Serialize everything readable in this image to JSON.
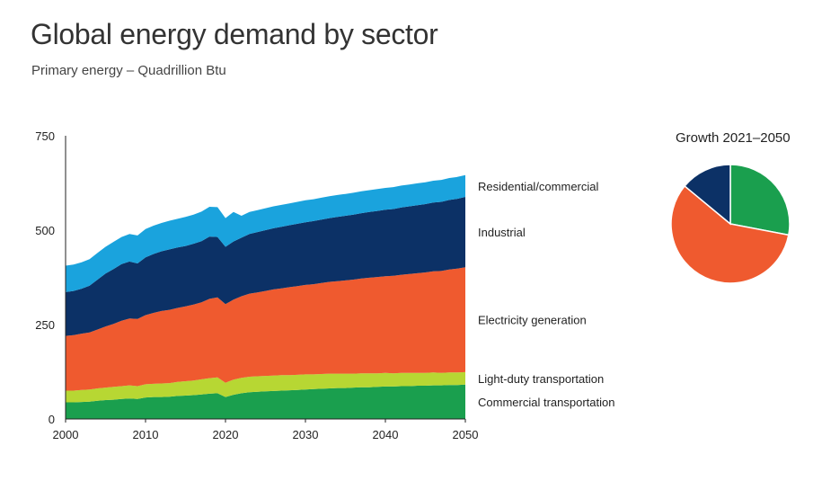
{
  "header": {
    "title": "Global energy demand by sector",
    "subtitle": "Primary energy – Quadrillion Btu"
  },
  "pie": {
    "title": "Growth 2021–2050"
  },
  "chart_data": [
    {
      "type": "area",
      "stacked": true,
      "title": "Global energy demand by sector",
      "subtitle": "Primary energy – Quadrillion Btu",
      "xlabel": "",
      "ylabel": "",
      "xlim": [
        2000,
        2050
      ],
      "ylim": [
        0,
        750
      ],
      "x_ticks": [
        2000,
        2010,
        2020,
        2030,
        2040,
        2050
      ],
      "y_ticks": [
        0,
        250,
        500,
        750
      ],
      "grid": false,
      "legend": "right-side labels",
      "x": [
        2000,
        2001,
        2002,
        2003,
        2004,
        2005,
        2006,
        2007,
        2008,
        2009,
        2010,
        2011,
        2012,
        2013,
        2014,
        2015,
        2016,
        2017,
        2018,
        2019,
        2020,
        2021,
        2022,
        2023,
        2024,
        2025,
        2026,
        2027,
        2028,
        2029,
        2030,
        2031,
        2032,
        2033,
        2034,
        2035,
        2036,
        2037,
        2038,
        2039,
        2040,
        2041,
        2042,
        2043,
        2044,
        2045,
        2046,
        2047,
        2048,
        2049,
        2050
      ],
      "series": [
        {
          "name": "Commercial transportation",
          "color": "#1a9f4e",
          "values": [
            44,
            44,
            45,
            46,
            48,
            50,
            51,
            53,
            54,
            53,
            57,
            58,
            58,
            59,
            61,
            62,
            63,
            65,
            67,
            68,
            58,
            64,
            68,
            71,
            72,
            73,
            74,
            75,
            76,
            77,
            78,
            79,
            80,
            81,
            82,
            82,
            83,
            84,
            84,
            85,
            86,
            86,
            87,
            87,
            88,
            88,
            89,
            89,
            90,
            90,
            91
          ]
        },
        {
          "name": "Light-duty transportation",
          "color": "#b7d733",
          "values": [
            31,
            31,
            32,
            32,
            33,
            33,
            34,
            34,
            35,
            34,
            35,
            35,
            36,
            36,
            37,
            38,
            39,
            40,
            41,
            42,
            38,
            40,
            41,
            41,
            41,
            41,
            41,
            41,
            40,
            40,
            40,
            39,
            39,
            39,
            38,
            38,
            37,
            37,
            37,
            36,
            36,
            35,
            35,
            35,
            34,
            34,
            34,
            33,
            33,
            33,
            33
          ]
        },
        {
          "name": "Electricity generation",
          "color": "#ef5a2f",
          "values": [
            145,
            147,
            149,
            151,
            156,
            162,
            167,
            173,
            177,
            178,
            183,
            188,
            192,
            194,
            196,
            198,
            201,
            204,
            210,
            212,
            208,
            212,
            216,
            220,
            222,
            225,
            228,
            230,
            233,
            235,
            237,
            239,
            241,
            243,
            245,
            247,
            249,
            251,
            253,
            255,
            256,
            258,
            260,
            262,
            264,
            266,
            268,
            270,
            273,
            275,
            278
          ]
        },
        {
          "name": "Industrial",
          "color": "#0c3166",
          "values": [
            116,
            117,
            119,
            124,
            132,
            140,
            145,
            150,
            151,
            147,
            153,
            156,
            158,
            160,
            160,
            160,
            161,
            162,
            165,
            160,
            152,
            154,
            155,
            158,
            160,
            161,
            162,
            163,
            164,
            165,
            166,
            167,
            168,
            169,
            170,
            171,
            172,
            173,
            174,
            175,
            176,
            177,
            178,
            179,
            180,
            181,
            182,
            183,
            184,
            185,
            186
          ]
        },
        {
          "name": "Residential/commercial",
          "color": "#1aa3dd",
          "values": [
            70,
            70,
            70,
            70,
            71,
            71,
            72,
            72,
            73,
            74,
            75,
            75,
            75,
            76,
            76,
            77,
            77,
            78,
            79,
            79,
            76,
            78,
            58,
            58,
            58,
            58,
            58,
            58,
            58,
            58,
            58,
            58,
            58,
            58,
            58,
            58,
            58,
            58,
            58,
            58,
            58,
            58,
            58,
            58,
            58,
            58,
            58,
            58,
            58,
            58,
            58
          ]
        }
      ]
    },
    {
      "type": "pie",
      "title": "Growth 2021–2050",
      "series": [
        {
          "name": "Industrial",
          "value": 28,
          "color": "#1a9f4e"
        },
        {
          "name": "Electricity generation",
          "value": 58,
          "color": "#ef5a2f"
        },
        {
          "name": "Residential/commercial",
          "value": 14,
          "color": "#0c3166"
        }
      ]
    }
  ]
}
